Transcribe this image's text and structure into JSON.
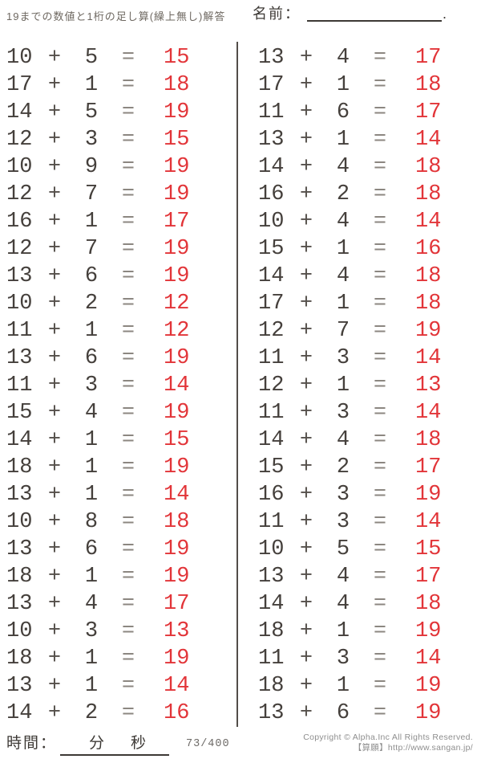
{
  "header": {
    "title": "19までの数値と1桁の足し算(繰上無し)解答",
    "name_label": "名前：",
    "name_line_end": "."
  },
  "operators": {
    "plus": "+",
    "equals": "="
  },
  "problems": {
    "left": [
      {
        "a": 10,
        "b": 5,
        "ans": 15
      },
      {
        "a": 17,
        "b": 1,
        "ans": 18
      },
      {
        "a": 14,
        "b": 5,
        "ans": 19
      },
      {
        "a": 12,
        "b": 3,
        "ans": 15
      },
      {
        "a": 10,
        "b": 9,
        "ans": 19
      },
      {
        "a": 12,
        "b": 7,
        "ans": 19
      },
      {
        "a": 16,
        "b": 1,
        "ans": 17
      },
      {
        "a": 12,
        "b": 7,
        "ans": 19
      },
      {
        "a": 13,
        "b": 6,
        "ans": 19
      },
      {
        "a": 10,
        "b": 2,
        "ans": 12
      },
      {
        "a": 11,
        "b": 1,
        "ans": 12
      },
      {
        "a": 13,
        "b": 6,
        "ans": 19
      },
      {
        "a": 11,
        "b": 3,
        "ans": 14
      },
      {
        "a": 15,
        "b": 4,
        "ans": 19
      },
      {
        "a": 14,
        "b": 1,
        "ans": 15
      },
      {
        "a": 18,
        "b": 1,
        "ans": 19
      },
      {
        "a": 13,
        "b": 1,
        "ans": 14
      },
      {
        "a": 10,
        "b": 8,
        "ans": 18
      },
      {
        "a": 13,
        "b": 6,
        "ans": 19
      },
      {
        "a": 18,
        "b": 1,
        "ans": 19
      },
      {
        "a": 13,
        "b": 4,
        "ans": 17
      },
      {
        "a": 10,
        "b": 3,
        "ans": 13
      },
      {
        "a": 18,
        "b": 1,
        "ans": 19
      },
      {
        "a": 13,
        "b": 1,
        "ans": 14
      },
      {
        "a": 14,
        "b": 2,
        "ans": 16
      }
    ],
    "right": [
      {
        "a": 13,
        "b": 4,
        "ans": 17
      },
      {
        "a": 17,
        "b": 1,
        "ans": 18
      },
      {
        "a": 11,
        "b": 6,
        "ans": 17
      },
      {
        "a": 13,
        "b": 1,
        "ans": 14
      },
      {
        "a": 14,
        "b": 4,
        "ans": 18
      },
      {
        "a": 16,
        "b": 2,
        "ans": 18
      },
      {
        "a": 10,
        "b": 4,
        "ans": 14
      },
      {
        "a": 15,
        "b": 1,
        "ans": 16
      },
      {
        "a": 14,
        "b": 4,
        "ans": 18
      },
      {
        "a": 17,
        "b": 1,
        "ans": 18
      },
      {
        "a": 12,
        "b": 7,
        "ans": 19
      },
      {
        "a": 11,
        "b": 3,
        "ans": 14
      },
      {
        "a": 12,
        "b": 1,
        "ans": 13
      },
      {
        "a": 11,
        "b": 3,
        "ans": 14
      },
      {
        "a": 14,
        "b": 4,
        "ans": 18
      },
      {
        "a": 15,
        "b": 2,
        "ans": 17
      },
      {
        "a": 16,
        "b": 3,
        "ans": 19
      },
      {
        "a": 11,
        "b": 3,
        "ans": 14
      },
      {
        "a": 10,
        "b": 5,
        "ans": 15
      },
      {
        "a": 13,
        "b": 4,
        "ans": 17
      },
      {
        "a": 14,
        "b": 4,
        "ans": 18
      },
      {
        "a": 18,
        "b": 1,
        "ans": 19
      },
      {
        "a": 11,
        "b": 3,
        "ans": 14
      },
      {
        "a": 18,
        "b": 1,
        "ans": 19
      },
      {
        "a": 13,
        "b": 6,
        "ans": 19
      }
    ]
  },
  "footer": {
    "time_label": "時間：",
    "minutes_label": "分",
    "seconds_label": "秒",
    "page_indicator": "73/400",
    "copyright_line1": "Copyright © Alpha.Inc All Rights Reserved.",
    "copyright_line2": "【算願】http://www.sangan.jp/"
  },
  "colors": {
    "answer_red": "#e23539",
    "problem_text": "#45403c",
    "divider_gray": "#524d49",
    "footer_gray": "#8e8e8e"
  }
}
